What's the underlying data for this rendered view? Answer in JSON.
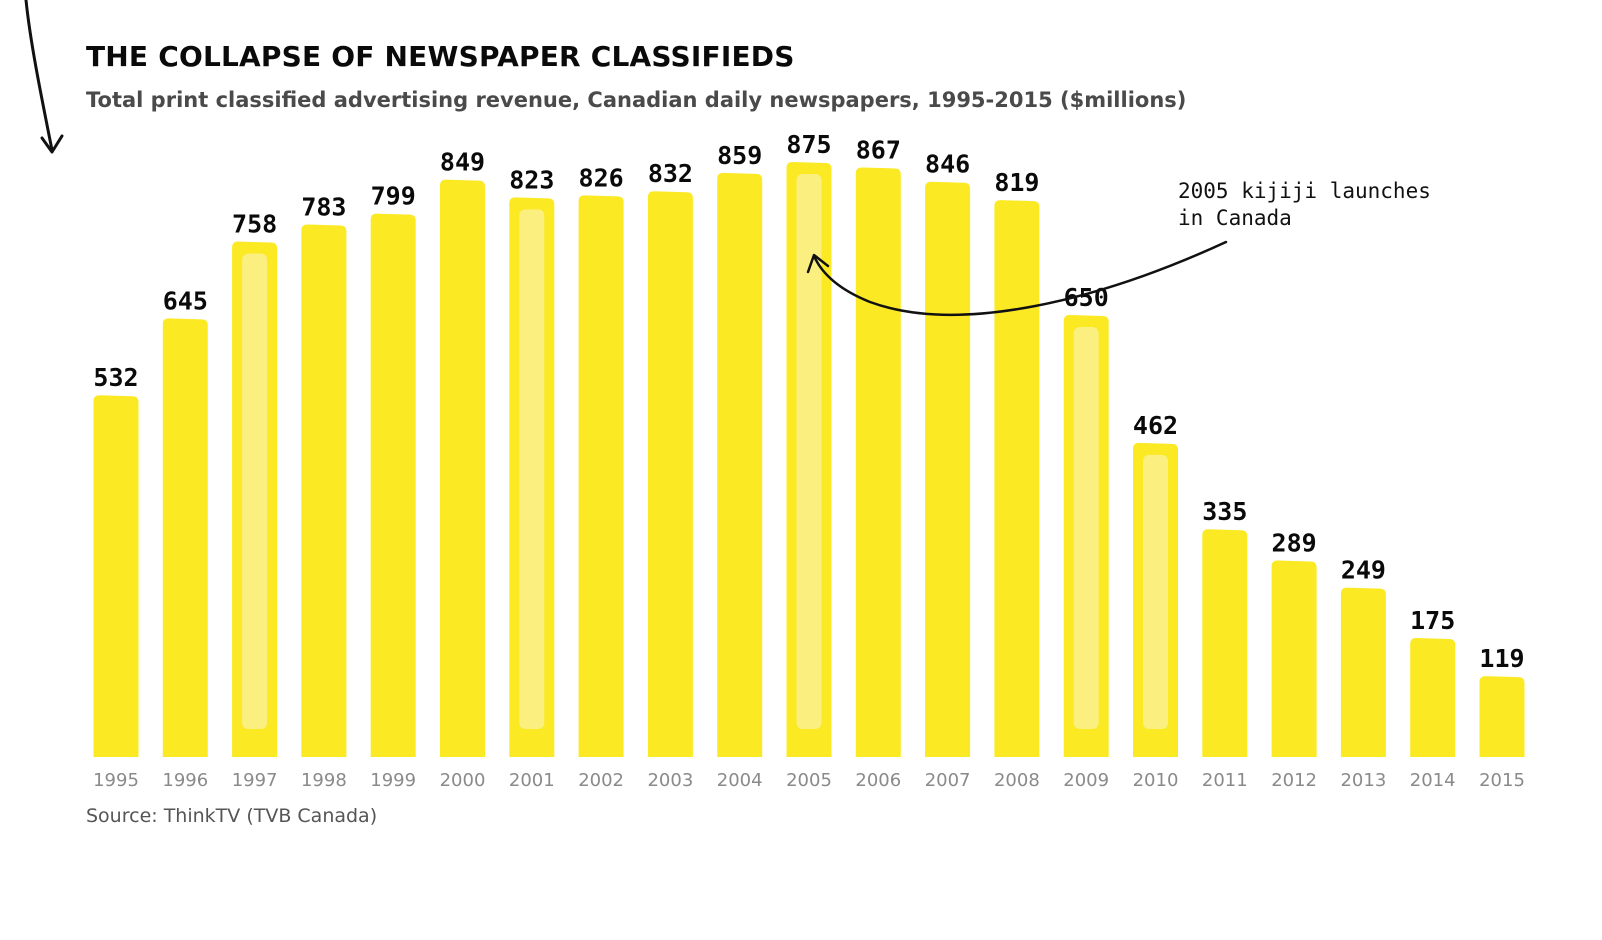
{
  "header": {
    "title": "THE COLLAPSE OF NEWSPAPER CLASSIFIEDS",
    "subtitle": "Total print classified advertising revenue, Canadian daily newspapers, 1995-2015 ($millions)"
  },
  "footer": {
    "source": "Source: ThinkTV (TVB Canada)"
  },
  "annotation": {
    "line1": "2005 kijiji launches",
    "line2": "in Canada",
    "target_year": "2005"
  },
  "colors": {
    "bar": "#fbe924",
    "bar_light": "#fbf08a",
    "text": "#0a0a0a",
    "tick": "#8a8a8a"
  },
  "chart_data": {
    "type": "bar",
    "title": "THE COLLAPSE OF NEWSPAPER CLASSIFIEDS",
    "subtitle": "Total print classified advertising revenue, Canadian daily newspapers, 1995-2015 ($millions)",
    "categories": [
      "1995",
      "1996",
      "1997",
      "1998",
      "1999",
      "2000",
      "2001",
      "2002",
      "2003",
      "2004",
      "2005",
      "2006",
      "2007",
      "2008",
      "2009",
      "2010",
      "2011",
      "2012",
      "2013",
      "2014",
      "2015"
    ],
    "values": [
      532,
      645,
      758,
      783,
      799,
      849,
      823,
      826,
      832,
      859,
      875,
      867,
      846,
      819,
      650,
      462,
      335,
      289,
      249,
      175,
      119
    ],
    "highlighted_categories": [
      "1997",
      "2001",
      "2005",
      "2009",
      "2010"
    ],
    "xlabel": "",
    "ylabel": "",
    "ylim": [
      0,
      875
    ],
    "grid": false,
    "legend": "none"
  }
}
